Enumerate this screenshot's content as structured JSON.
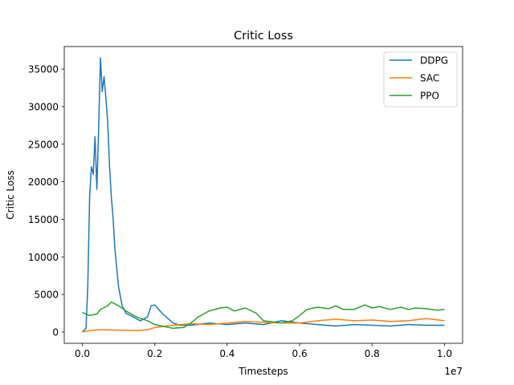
{
  "chart_data": {
    "type": "line",
    "title": "Critic Loss",
    "xlabel": "Timesteps",
    "ylabel": "Critic Loss",
    "x_offset_label": "1e7",
    "xlim": [
      -0.05,
      1.05
    ],
    "ylim": [
      -1500,
      38000
    ],
    "x_ticks": [
      0.0,
      0.2,
      0.4,
      0.6,
      0.8,
      1.0
    ],
    "x_tick_labels": [
      "0.0",
      "0.2",
      "0.4",
      "0.6",
      "0.8",
      "1.0"
    ],
    "y_ticks": [
      0,
      5000,
      10000,
      15000,
      20000,
      25000,
      30000,
      35000
    ],
    "y_tick_labels": [
      "0",
      "5000",
      "10000",
      "15000",
      "20000",
      "25000",
      "30000",
      "35000"
    ],
    "grid": false,
    "legend_position": "top-right",
    "series": [
      {
        "name": "DDPG",
        "color": "#1f77b4",
        "x": [
          0.0,
          0.01,
          0.015,
          0.02,
          0.025,
          0.03,
          0.035,
          0.04,
          0.045,
          0.05,
          0.055,
          0.06,
          0.065,
          0.07,
          0.075,
          0.08,
          0.085,
          0.09,
          0.1,
          0.11,
          0.12,
          0.14,
          0.16,
          0.18,
          0.19,
          0.2,
          0.22,
          0.25,
          0.27,
          0.3,
          0.35,
          0.4,
          0.45,
          0.5,
          0.55,
          0.6,
          0.65,
          0.7,
          0.75,
          0.8,
          0.85,
          0.9,
          0.95,
          1.0
        ],
        "y": [
          0,
          500,
          6000,
          18000,
          22000,
          21000,
          26000,
          19000,
          27000,
          36500,
          32000,
          34000,
          31000,
          28000,
          22000,
          18000,
          15000,
          11000,
          6000,
          3500,
          2500,
          2000,
          1500,
          2000,
          3500,
          3600,
          2500,
          1200,
          900,
          900,
          1200,
          1000,
          1200,
          1000,
          1500,
          1200,
          1000,
          800,
          1000,
          900,
          800,
          1000,
          900,
          900
        ]
      },
      {
        "name": "SAC",
        "color": "#ff7f0e",
        "x": [
          0.0,
          0.02,
          0.05,
          0.1,
          0.15,
          0.18,
          0.2,
          0.25,
          0.3,
          0.35,
          0.4,
          0.45,
          0.5,
          0.55,
          0.6,
          0.65,
          0.7,
          0.75,
          0.8,
          0.85,
          0.9,
          0.95,
          1.0
        ],
        "y": [
          0,
          200,
          300,
          250,
          200,
          300,
          600,
          900,
          1100,
          1000,
          1200,
          1400,
          1300,
          1200,
          1200,
          1500,
          1700,
          1500,
          1600,
          1400,
          1500,
          1800,
          1500
        ]
      },
      {
        "name": "PPO",
        "color": "#2ca02c",
        "x": [
          0.0,
          0.02,
          0.04,
          0.05,
          0.07,
          0.08,
          0.1,
          0.12,
          0.15,
          0.18,
          0.2,
          0.25,
          0.28,
          0.3,
          0.32,
          0.35,
          0.38,
          0.4,
          0.42,
          0.45,
          0.48,
          0.5,
          0.55,
          0.58,
          0.6,
          0.62,
          0.65,
          0.68,
          0.7,
          0.72,
          0.75,
          0.78,
          0.8,
          0.82,
          0.85,
          0.88,
          0.9,
          0.92,
          0.95,
          0.98,
          1.0
        ],
        "y": [
          2600,
          2200,
          2400,
          3000,
          3500,
          4000,
          3500,
          2800,
          2000,
          1500,
          1000,
          500,
          600,
          1200,
          2000,
          2800,
          3200,
          3300,
          2800,
          3200,
          2500,
          1500,
          1200,
          1500,
          2200,
          3000,
          3300,
          3100,
          3500,
          3000,
          3000,
          3600,
          3200,
          3400,
          3000,
          3300,
          3000,
          3200,
          3100,
          2900,
          3000
        ]
      }
    ]
  }
}
